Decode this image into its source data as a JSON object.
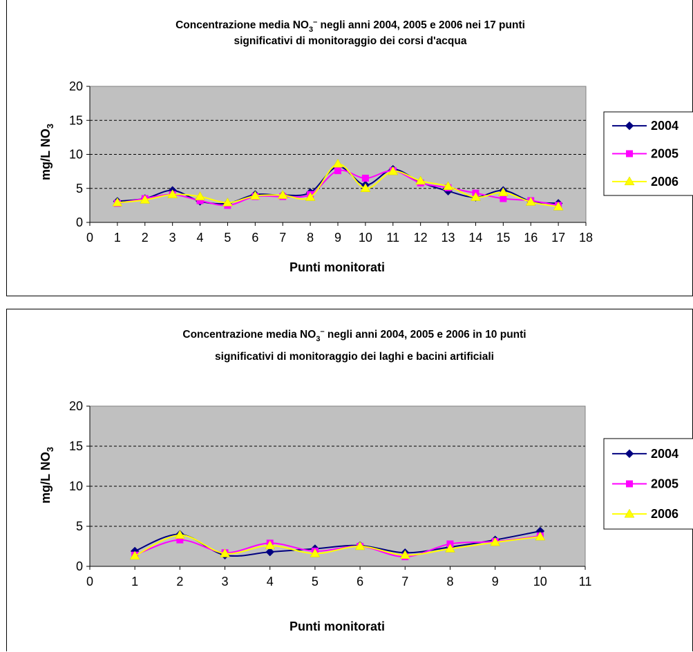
{
  "chart_data": [
    {
      "type": "line",
      "title_line1": "Concentrazione media NO",
      "title_sub": "3",
      "title_sup": "–",
      "title_line1_rest": " negli anni 2004, 2005 e 2006 nei 17 punti",
      "title_line2": "significativi di monitoraggio dei corsi d'acqua",
      "xlabel": "Punti monitorati",
      "ylabel": "mg/L NO",
      "ylabel_sub": "3",
      "xlim": [
        0,
        18
      ],
      "ylim": [
        0,
        20
      ],
      "xticks": [
        0,
        1,
        2,
        3,
        4,
        5,
        6,
        7,
        8,
        9,
        10,
        11,
        12,
        13,
        14,
        15,
        16,
        17,
        18
      ],
      "yticks": [
        0,
        5,
        10,
        15,
        20
      ],
      "grid": "horizontal-dashed",
      "legend": "right",
      "x": [
        1,
        2,
        3,
        4,
        5,
        6,
        7,
        8,
        9,
        10,
        11,
        12,
        13,
        14,
        15,
        16,
        17
      ],
      "series": [
        {
          "name": "2004",
          "color": "#000080",
          "marker": "diamond",
          "values": [
            3.1,
            3.5,
            4.7,
            3.1,
            2.8,
            4.1,
            4.0,
            4.4,
            8.2,
            5.5,
            7.8,
            5.9,
            4.6,
            3.7,
            4.7,
            3.1,
            2.8
          ]
        },
        {
          "name": "2005",
          "color": "#FF00FF",
          "marker": "square",
          "values": [
            2.8,
            3.5,
            4.1,
            3.2,
            2.5,
            3.8,
            3.8,
            4.1,
            7.6,
            6.5,
            7.6,
            5.8,
            5.1,
            4.3,
            3.5,
            3.2,
            2.5
          ]
        },
        {
          "name": "2006",
          "color": "#FFFF00",
          "marker": "triangle",
          "values": [
            2.9,
            3.3,
            4.1,
            3.8,
            2.9,
            3.9,
            4.0,
            3.7,
            8.6,
            5.0,
            7.5,
            6.1,
            5.3,
            3.7,
            4.4,
            3.0,
            2.3
          ]
        }
      ]
    },
    {
      "type": "line",
      "title_line1": "Concentrazione media NO",
      "title_sub": "3",
      "title_sup": "–",
      "title_line1_rest": " negli anni 2004, 2005 e 2006 in 10 punti",
      "title_line2": "significativi di monitoraggio dei laghi e bacini artificiali",
      "xlabel": "Punti monitorati",
      "ylabel": "mg/L NO",
      "ylabel_sub": "3",
      "xlim": [
        0,
        11
      ],
      "ylim": [
        0,
        20
      ],
      "xticks": [
        0,
        1,
        2,
        3,
        4,
        5,
        6,
        7,
        8,
        9,
        10,
        11
      ],
      "yticks": [
        0,
        5,
        10,
        15,
        20
      ],
      "grid": "horizontal-dashed",
      "legend": "right",
      "x": [
        1,
        2,
        3,
        4,
        5,
        6,
        7,
        8,
        9,
        10
      ],
      "series": [
        {
          "name": "2004",
          "color": "#000080",
          "marker": "diamond",
          "values": [
            1.9,
            4.0,
            1.4,
            1.8,
            2.2,
            2.6,
            1.7,
            2.4,
            3.3,
            4.4
          ]
        },
        {
          "name": "2005",
          "color": "#FF00FF",
          "marker": "square",
          "values": [
            1.4,
            3.3,
            1.7,
            2.9,
            1.9,
            2.5,
            1.2,
            2.8,
            3.1,
            3.8
          ]
        },
        {
          "name": "2006",
          "color": "#FFFF00",
          "marker": "triangle",
          "values": [
            1.3,
            3.9,
            1.6,
            2.6,
            1.6,
            2.5,
            1.4,
            2.2,
            3.0,
            3.7
          ]
        }
      ]
    }
  ]
}
